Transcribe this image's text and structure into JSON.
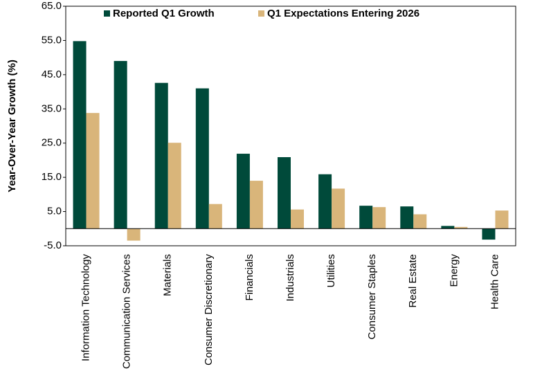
{
  "chart_data": {
    "type": "bar",
    "y_label": "Year-Over-Year Growth (%)",
    "categories": [
      "Information Technology",
      "Communication Services",
      "Materials",
      "Consumer Discretionary",
      "Financials",
      "Industrials",
      "Utilities",
      "Consumer Staples",
      "Real Estate",
      "Energy",
      "Health Care"
    ],
    "series": [
      {
        "name": "Reported Q1 Growth",
        "color": "#004a3a",
        "values": [
          54.8,
          49.0,
          42.6,
          41.0,
          21.9,
          20.9,
          15.9,
          6.7,
          6.5,
          0.8,
          -3.2
        ]
      },
      {
        "name": "Q1 Expectations Entering 2026",
        "color": "#d9b57a",
        "values": [
          33.8,
          -3.5,
          25.1,
          7.2,
          14.0,
          5.6,
          11.7,
          6.3,
          4.2,
          0.5,
          5.3
        ]
      }
    ],
    "ylim": [
      -5,
      65
    ],
    "yticks": [
      {
        "value": -5,
        "label": "-5.0"
      },
      {
        "value": 5,
        "label": "5.0"
      },
      {
        "value": 15,
        "label": "15.0"
      },
      {
        "value": 25,
        "label": "25.0"
      },
      {
        "value": 35,
        "label": "35.0"
      },
      {
        "value": 45,
        "label": "45.0"
      },
      {
        "value": 55,
        "label": "55.0"
      },
      {
        "value": 65,
        "label": "65.0"
      }
    ],
    "grid": false,
    "legend": "top"
  }
}
